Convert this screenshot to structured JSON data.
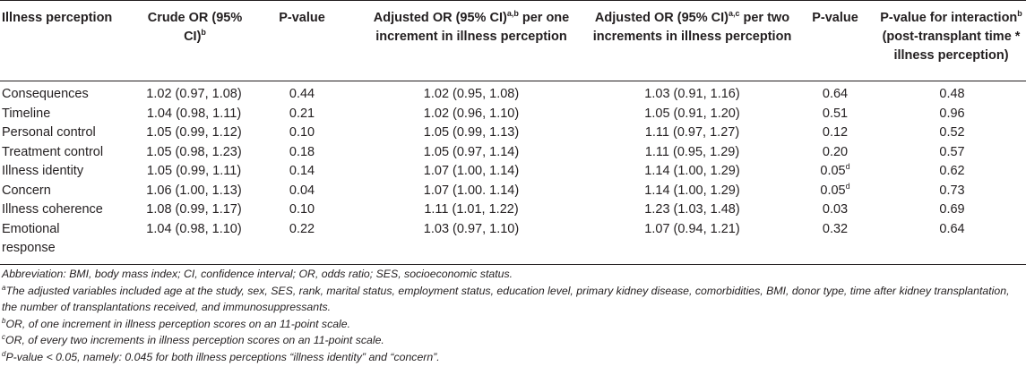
{
  "headers": {
    "illness_perception": "Illness perception",
    "crude_or": "Crude OR (95% CI)",
    "crude_or_sup": "b",
    "p_value_1": "P-value",
    "adj_one_pre": "Adjusted OR (95% CI)",
    "adj_one_sup": "a,b",
    "adj_one_post": " per one increment in illness perception",
    "adj_two_pre": "Adjusted OR (95% CI)",
    "adj_two_sup": "a,c",
    "adj_two_post": " per two increments in illness perception",
    "p_value_2": "P-value",
    "p_inter_pre": "P-value for interaction",
    "p_inter_sup": "b",
    "p_inter_post": " (post-transplant time * illness perception)"
  },
  "rows": [
    {
      "name": "Consequences",
      "crude": "1.02 (0.97, 1.08)",
      "p1": "0.44",
      "adj1": "1.02 (0.95, 1.08)",
      "adj2": "1.03 (0.91, 1.16)",
      "p2": "0.64",
      "p2_sup": "",
      "pint": "0.48"
    },
    {
      "name": "Timeline",
      "crude": "1.04 (0.98, 1.11)",
      "p1": "0.21",
      "adj1": "1.02 (0.96, 1.10)",
      "adj2": "1.05 (0.91, 1.20)",
      "p2": "0.51",
      "p2_sup": "",
      "pint": "0.96"
    },
    {
      "name": "Personal control",
      "crude": "1.05 (0.99, 1.12)",
      "p1": "0.10",
      "adj1": "1.05 (0.99, 1.13)",
      "adj2": "1.11 (0.97, 1.27)",
      "p2": "0.12",
      "p2_sup": "",
      "pint": "0.52"
    },
    {
      "name": "Treatment control",
      "crude": "1.05 (0.98, 1.23)",
      "p1": "0.18",
      "adj1": "1.05 (0.97, 1.14)",
      "adj2": "1.11 (0.95, 1.29)",
      "p2": "0.20",
      "p2_sup": "",
      "pint": "0.57"
    },
    {
      "name": "Illness identity",
      "crude": "1.05 (0.99, 1.11)",
      "p1": "0.14",
      "adj1": "1.07 (1.00, 1.14)",
      "adj2": "1.14 (1.00, 1.29)",
      "p2": "0.05",
      "p2_sup": "d",
      "pint": "0.62"
    },
    {
      "name": "Concern",
      "crude": "1.06 (1.00, 1.13)",
      "p1": "0.04",
      "adj1": "1.07 (1.00. 1.14)",
      "adj2": "1.14 (1.00, 1.29)",
      "p2": "0.05",
      "p2_sup": "d",
      "pint": "0.73"
    },
    {
      "name": "Illness coherence",
      "crude": "1.08 (0.99, 1.17)",
      "p1": "0.10",
      "adj1": "1.11 (1.01, 1.22)",
      "adj2": "1.23 (1.03, 1.48)",
      "p2": "0.03",
      "p2_sup": "",
      "pint": "0.69"
    },
    {
      "name": "Emotional response",
      "crude": "1.04 (0.98, 1.10)",
      "p1": "0.22",
      "adj1": "1.03 (0.97, 1.10)",
      "adj2": "1.07 (0.94, 1.21)",
      "p2": "0.32",
      "p2_sup": "",
      "pint": "0.64"
    }
  ],
  "notes": {
    "abbreviation": "Abbreviation: BMI, body mass index; CI, confidence interval; OR, odds ratio; SES, socioeconomic status.",
    "a_mark": "a",
    "a_text": "The adjusted variables included age at the study, sex, SES, rank, marital status, employment status, education level, primary kidney disease, comorbidities, BMI, donor type, time after kidney transplantation, the number of transplantations received, and immunosuppressants.",
    "b_mark": "b",
    "b_text": "OR, of one increment in illness perception scores on an 11-point scale.",
    "c_mark": "c",
    "c_text": "OR, of every two increments in illness perception scores on an 11-point scale.",
    "d_mark": "d",
    "d_text": "P-value < 0.05, namely: 0.045 for both illness perceptions “illness identity” and “concern”."
  }
}
